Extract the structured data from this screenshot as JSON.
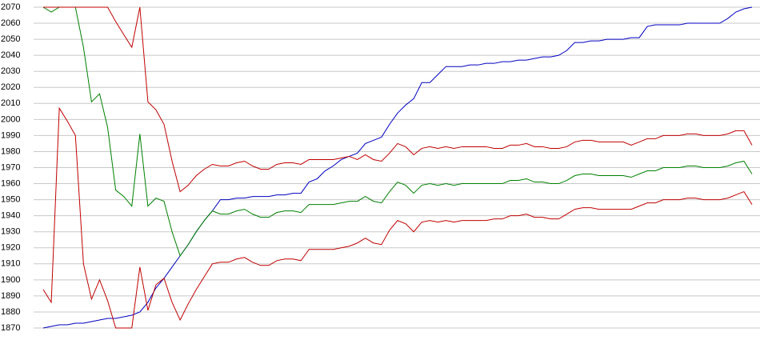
{
  "chart_data": {
    "type": "line",
    "categories": [
      null,
      null,
      null,
      null,
      null,
      null,
      null,
      null,
      null,
      null,
      null,
      null,
      null,
      null,
      null,
      null,
      null,
      null,
      null,
      null,
      null,
      null,
      null,
      null,
      null,
      null,
      null,
      null,
      null,
      null,
      null,
      null,
      null,
      null,
      null,
      null,
      null,
      null,
      null,
      null,
      null,
      null,
      null,
      null,
      null,
      null,
      null,
      null,
      null,
      null,
      null,
      null,
      null,
      null,
      null,
      null,
      null,
      null,
      null,
      null,
      null,
      null,
      null,
      null,
      null,
      null,
      null,
      null,
      null,
      null,
      null,
      null,
      null,
      null,
      null,
      null,
      null,
      null,
      null,
      null,
      null,
      null,
      null,
      null,
      null,
      null,
      null,
      null,
      null
    ],
    "ylim": [
      1870,
      2070
    ],
    "yticks": [
      1870,
      1880,
      1890,
      1900,
      1910,
      1920,
      1930,
      1940,
      1950,
      1960,
      1970,
      1980,
      1990,
      2000,
      2010,
      2020,
      2030,
      2040,
      2050,
      2060,
      2070
    ],
    "grid": true,
    "series": [
      {
        "color": "#0000c0",
        "values": [
          1870,
          1871,
          1872,
          1872,
          1873,
          1873,
          1874,
          1875,
          1876,
          1876,
          1877,
          1878,
          1880,
          1886,
          1895,
          1901,
          1908,
          1915,
          1922,
          1930,
          1937,
          1943,
          1950,
          1950,
          1951,
          1951,
          1952,
          1952,
          1952,
          1953,
          1953,
          1954,
          1954,
          1961,
          1963,
          1968,
          1971,
          1975,
          1977,
          1979,
          1985,
          1987,
          1989,
          1997,
          2004,
          2009,
          2013,
          2023,
          2023,
          2028,
          2033,
          2033,
          2033,
          2034,
          2034,
          2035,
          2035,
          2036,
          2036,
          2037,
          2037,
          2038,
          2039,
          2039,
          2040,
          2043,
          2048,
          2048,
          2049,
          2049,
          2050,
          2050,
          2050,
          2051,
          2051,
          2058,
          2059,
          2059,
          2059,
          2059,
          2060,
          2060,
          2060,
          2060,
          2060,
          2063,
          2067,
          2069,
          2070
        ]
      },
      {
        "color": "#008000",
        "values": [
          2070,
          2067,
          2070,
          2070,
          2070,
          2045,
          2011,
          2016,
          1995,
          1956,
          1952,
          1946,
          1991,
          1946,
          1951,
          1949,
          1930,
          1915,
          1922,
          1930,
          1937,
          1943,
          1941,
          1941,
          1943,
          1944,
          1941,
          1939,
          1939,
          1942,
          1943,
          1943,
          1942,
          1947,
          1947,
          1947,
          1947,
          1948,
          1949,
          1949,
          1952,
          1949,
          1948,
          1955,
          1961,
          1959,
          1954,
          1959,
          1960,
          1959,
          1960,
          1959,
          1960,
          1960,
          1960,
          1960,
          1960,
          1960,
          1962,
          1962,
          1963,
          1961,
          1961,
          1960,
          1960,
          1962,
          1965,
          1966,
          1966,
          1965,
          1965,
          1965,
          1965,
          1964,
          1966,
          1968,
          1968,
          1970,
          1970,
          1970,
          1971,
          1971,
          1970,
          1970,
          1970,
          1971,
          1973,
          1974,
          1966
        ]
      },
      {
        "color": "#c00000",
        "values": [
          2070,
          2070,
          2070,
          2070,
          2070,
          2070,
          2070,
          2070,
          2070,
          2061,
          2053,
          2045,
          2070,
          2011,
          2006,
          1997,
          1974,
          1955,
          1959,
          1965,
          1969,
          1972,
          1971,
          1971,
          1973,
          1974,
          1971,
          1969,
          1969,
          1972,
          1973,
          1973,
          1972,
          1975,
          1975,
          1975,
          1975,
          1976,
          1977,
          1975,
          1978,
          1975,
          1974,
          1979,
          1985,
          1983,
          1978,
          1982,
          1983,
          1982,
          1983,
          1982,
          1983,
          1983,
          1983,
          1983,
          1982,
          1982,
          1984,
          1984,
          1985,
          1983,
          1983,
          1982,
          1982,
          1983,
          1986,
          1987,
          1987,
          1986,
          1986,
          1986,
          1986,
          1984,
          1986,
          1988,
          1988,
          1990,
          1990,
          1990,
          1991,
          1991,
          1990,
          1990,
          1990,
          1991,
          1993,
          1993,
          1984
        ]
      },
      {
        "color": "#c00000",
        "values": [
          1894,
          1886,
          2007,
          1999,
          1990,
          1910,
          1888,
          1900,
          1887,
          1870,
          1870,
          1870,
          1908,
          1881,
          1897,
          1901,
          1886,
          1875,
          1885,
          1894,
          1902,
          1910,
          1911,
          1911,
          1913,
          1914,
          1911,
          1909,
          1909,
          1912,
          1913,
          1913,
          1912,
          1919,
          1919,
          1919,
          1919,
          1920,
          1921,
          1923,
          1926,
          1923,
          1922,
          1931,
          1937,
          1935,
          1930,
          1936,
          1937,
          1936,
          1937,
          1936,
          1937,
          1937,
          1937,
          1937,
          1938,
          1938,
          1940,
          1940,
          1941,
          1939,
          1939,
          1938,
          1938,
          1941,
          1944,
          1945,
          1945,
          1944,
          1944,
          1944,
          1944,
          1944,
          1946,
          1948,
          1948,
          1950,
          1950,
          1950,
          1951,
          1951,
          1950,
          1950,
          1950,
          1951,
          1953,
          1955,
          1947
        ]
      }
    ]
  }
}
